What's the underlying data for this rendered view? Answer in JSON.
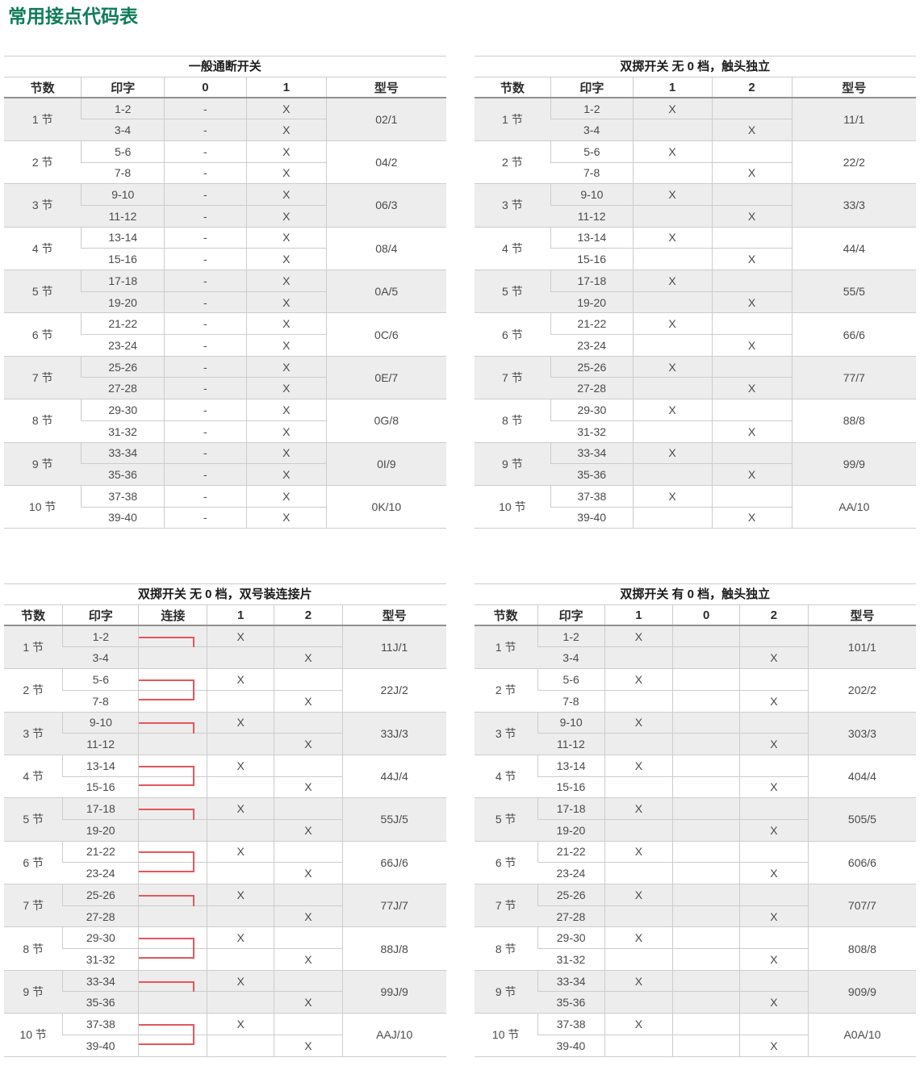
{
  "page_title": "常用接点代码表",
  "colors": {
    "title_green": "#0e7c55",
    "connector_red": "#e4565c",
    "row_shade": "#ededed",
    "grid_line": "#cccccc",
    "header_line": "#919191",
    "text": "#4a4a4a"
  },
  "tables": [
    {
      "name": "general-on-off-switch",
      "title": "一般通断开关",
      "columns": [
        "节数",
        "印字",
        "0",
        "1",
        "型号"
      ],
      "col_widths": [
        "17.5%",
        "18.8%",
        "18.5%",
        "18.2%",
        "27%"
      ],
      "connector": false,
      "groups": [
        {
          "sections": "1 节",
          "model": "02/1",
          "rows": [
            {
              "pin": "1-2",
              "marks": [
                "-",
                "X"
              ]
            },
            {
              "pin": "3-4",
              "marks": [
                "-",
                "X"
              ]
            }
          ]
        },
        {
          "sections": "2 节",
          "model": "04/2",
          "rows": [
            {
              "pin": "5-6",
              "marks": [
                "-",
                "X"
              ]
            },
            {
              "pin": "7-8",
              "marks": [
                "-",
                "X"
              ]
            }
          ]
        },
        {
          "sections": "3 节",
          "model": "06/3",
          "rows": [
            {
              "pin": "9-10",
              "marks": [
                "-",
                "X"
              ]
            },
            {
              "pin": "11-12",
              "marks": [
                "-",
                "X"
              ]
            }
          ]
        },
        {
          "sections": "4 节",
          "model": "08/4",
          "rows": [
            {
              "pin": "13-14",
              "marks": [
                "-",
                "X"
              ]
            },
            {
              "pin": "15-16",
              "marks": [
                "-",
                "X"
              ]
            }
          ]
        },
        {
          "sections": "5 节",
          "model": "0A/5",
          "rows": [
            {
              "pin": "17-18",
              "marks": [
                "-",
                "X"
              ]
            },
            {
              "pin": "19-20",
              "marks": [
                "-",
                "X"
              ]
            }
          ]
        },
        {
          "sections": "6 节",
          "model": "0C/6",
          "rows": [
            {
              "pin": "21-22",
              "marks": [
                "-",
                "X"
              ]
            },
            {
              "pin": "23-24",
              "marks": [
                "-",
                "X"
              ]
            }
          ]
        },
        {
          "sections": "7 节",
          "model": "0E/7",
          "rows": [
            {
              "pin": "25-26",
              "marks": [
                "-",
                "X"
              ]
            },
            {
              "pin": "27-28",
              "marks": [
                "-",
                "X"
              ]
            }
          ]
        },
        {
          "sections": "8 节",
          "model": "0G/8",
          "rows": [
            {
              "pin": "29-30",
              "marks": [
                "-",
                "X"
              ]
            },
            {
              "pin": "31-32",
              "marks": [
                "-",
                "X"
              ]
            }
          ]
        },
        {
          "sections": "9 节",
          "model": "0I/9",
          "rows": [
            {
              "pin": "33-34",
              "marks": [
                "-",
                "X"
              ]
            },
            {
              "pin": "35-36",
              "marks": [
                "-",
                "X"
              ]
            }
          ]
        },
        {
          "sections": "10 节",
          "model": "0K/10",
          "rows": [
            {
              "pin": "37-38",
              "marks": [
                "-",
                "X"
              ]
            },
            {
              "pin": "39-40",
              "marks": [
                "-",
                "X"
              ]
            }
          ]
        }
      ]
    },
    {
      "name": "double-throw-no-zero-independent",
      "title": "双掷开关 无 0 档，触头独立",
      "columns": [
        "节数",
        "印字",
        "1",
        "2",
        "型号"
      ],
      "col_widths": [
        "17.4%",
        "18.5%",
        "17.9%",
        "18.1%",
        "28.1%"
      ],
      "connector": false,
      "groups": [
        {
          "sections": "1 节",
          "model": "11/1",
          "rows": [
            {
              "pin": "1-2",
              "marks": [
                "X",
                ""
              ]
            },
            {
              "pin": "3-4",
              "marks": [
                "",
                "X"
              ]
            }
          ]
        },
        {
          "sections": "2 节",
          "model": "22/2",
          "rows": [
            {
              "pin": "5-6",
              "marks": [
                "X",
                ""
              ]
            },
            {
              "pin": "7-8",
              "marks": [
                "",
                "X"
              ]
            }
          ]
        },
        {
          "sections": "3 节",
          "model": "33/3",
          "rows": [
            {
              "pin": "9-10",
              "marks": [
                "X",
                ""
              ]
            },
            {
              "pin": "11-12",
              "marks": [
                "",
                "X"
              ]
            }
          ]
        },
        {
          "sections": "4 节",
          "model": "44/4",
          "rows": [
            {
              "pin": "13-14",
              "marks": [
                "X",
                ""
              ]
            },
            {
              "pin": "15-16",
              "marks": [
                "",
                "X"
              ]
            }
          ]
        },
        {
          "sections": "5 节",
          "model": "55/5",
          "rows": [
            {
              "pin": "17-18",
              "marks": [
                "X",
                ""
              ]
            },
            {
              "pin": "19-20",
              "marks": [
                "",
                "X"
              ]
            }
          ]
        },
        {
          "sections": "6 节",
          "model": "66/6",
          "rows": [
            {
              "pin": "21-22",
              "marks": [
                "X",
                ""
              ]
            },
            {
              "pin": "23-24",
              "marks": [
                "",
                "X"
              ]
            }
          ]
        },
        {
          "sections": "7 节",
          "model": "77/7",
          "rows": [
            {
              "pin": "25-26",
              "marks": [
                "X",
                ""
              ]
            },
            {
              "pin": "27-28",
              "marks": [
                "",
                "X"
              ]
            }
          ]
        },
        {
          "sections": "8 节",
          "model": "88/8",
          "rows": [
            {
              "pin": "29-30",
              "marks": [
                "X",
                ""
              ]
            },
            {
              "pin": "31-32",
              "marks": [
                "",
                "X"
              ]
            }
          ]
        },
        {
          "sections": "9 节",
          "model": "99/9",
          "rows": [
            {
              "pin": "33-34",
              "marks": [
                "X",
                ""
              ]
            },
            {
              "pin": "35-36",
              "marks": [
                "",
                "X"
              ]
            }
          ]
        },
        {
          "sections": "10 节",
          "model": "AA/10",
          "rows": [
            {
              "pin": "37-38",
              "marks": [
                "X",
                ""
              ]
            },
            {
              "pin": "39-40",
              "marks": [
                "",
                "X"
              ]
            }
          ]
        }
      ]
    },
    {
      "name": "double-throw-no-zero-linked",
      "title": "双掷开关 无 0 档，双号装连接片",
      "columns": [
        "节数",
        "印字",
        "连接",
        "1",
        "2",
        "型号"
      ],
      "col_widths": [
        "13.3%",
        "17.2%",
        "15.5%",
        "15.1%",
        "15.5%",
        "23.4%"
      ],
      "connector": true,
      "groups": [
        {
          "sections": "1 节",
          "model": "11J/1",
          "rows": [
            {
              "pin": "1-2",
              "marks": [
                "X",
                ""
              ]
            },
            {
              "pin": "3-4",
              "marks": [
                "",
                "X"
              ]
            }
          ]
        },
        {
          "sections": "2 节",
          "model": "22J/2",
          "rows": [
            {
              "pin": "5-6",
              "marks": [
                "X",
                ""
              ]
            },
            {
              "pin": "7-8",
              "marks": [
                "",
                "X"
              ]
            }
          ]
        },
        {
          "sections": "3 节",
          "model": "33J/3",
          "rows": [
            {
              "pin": "9-10",
              "marks": [
                "X",
                ""
              ]
            },
            {
              "pin": "11-12",
              "marks": [
                "",
                "X"
              ]
            }
          ]
        },
        {
          "sections": "4 节",
          "model": "44J/4",
          "rows": [
            {
              "pin": "13-14",
              "marks": [
                "X",
                ""
              ]
            },
            {
              "pin": "15-16",
              "marks": [
                "",
                "X"
              ]
            }
          ]
        },
        {
          "sections": "5 节",
          "model": "55J/5",
          "rows": [
            {
              "pin": "17-18",
              "marks": [
                "X",
                ""
              ]
            },
            {
              "pin": "19-20",
              "marks": [
                "",
                "X"
              ]
            }
          ]
        },
        {
          "sections": "6 节",
          "model": "66J/6",
          "rows": [
            {
              "pin": "21-22",
              "marks": [
                "X",
                ""
              ]
            },
            {
              "pin": "23-24",
              "marks": [
                "",
                "X"
              ]
            }
          ]
        },
        {
          "sections": "7 节",
          "model": "77J/7",
          "rows": [
            {
              "pin": "25-26",
              "marks": [
                "X",
                ""
              ]
            },
            {
              "pin": "27-28",
              "marks": [
                "",
                "X"
              ]
            }
          ]
        },
        {
          "sections": "8 节",
          "model": "88J/8",
          "rows": [
            {
              "pin": "29-30",
              "marks": [
                "X",
                ""
              ]
            },
            {
              "pin": "31-32",
              "marks": [
                "",
                "X"
              ]
            }
          ]
        },
        {
          "sections": "9 节",
          "model": "99J/9",
          "rows": [
            {
              "pin": "33-34",
              "marks": [
                "X",
                ""
              ]
            },
            {
              "pin": "35-36",
              "marks": [
                "",
                "X"
              ]
            }
          ]
        },
        {
          "sections": "10 节",
          "model": "AAJ/10",
          "rows": [
            {
              "pin": "37-38",
              "marks": [
                "X",
                ""
              ]
            },
            {
              "pin": "39-40",
              "marks": [
                "",
                "X"
              ]
            }
          ]
        }
      ]
    },
    {
      "name": "double-throw-with-zero-independent",
      "title": "双掷开关 有 0 档，触头独立",
      "columns": [
        "节数",
        "印字",
        "1",
        "0",
        "2",
        "型号"
      ],
      "col_widths": [
        "14.4%",
        "15.1%",
        "15.5%",
        "15.1%",
        "15.5%",
        "24.4%"
      ],
      "connector": false,
      "groups": [
        {
          "sections": "1 节",
          "model": "101/1",
          "rows": [
            {
              "pin": "1-2",
              "marks": [
                "X",
                "",
                ""
              ]
            },
            {
              "pin": "3-4",
              "marks": [
                "",
                "",
                "X"
              ]
            }
          ]
        },
        {
          "sections": "2 节",
          "model": "202/2",
          "rows": [
            {
              "pin": "5-6",
              "marks": [
                "X",
                "",
                ""
              ]
            },
            {
              "pin": "7-8",
              "marks": [
                "",
                "",
                "X"
              ]
            }
          ]
        },
        {
          "sections": "3 节",
          "model": "303/3",
          "rows": [
            {
              "pin": "9-10",
              "marks": [
                "X",
                "",
                ""
              ]
            },
            {
              "pin": "11-12",
              "marks": [
                "",
                "",
                "X"
              ]
            }
          ]
        },
        {
          "sections": "4 节",
          "model": "404/4",
          "rows": [
            {
              "pin": "13-14",
              "marks": [
                "X",
                "",
                ""
              ]
            },
            {
              "pin": "15-16",
              "marks": [
                "",
                "",
                "X"
              ]
            }
          ]
        },
        {
          "sections": "5 节",
          "model": "505/5",
          "rows": [
            {
              "pin": "17-18",
              "marks": [
                "X",
                "",
                ""
              ]
            },
            {
              "pin": "19-20",
              "marks": [
                "",
                "",
                "X"
              ]
            }
          ]
        },
        {
          "sections": "6 节",
          "model": "606/6",
          "rows": [
            {
              "pin": "21-22",
              "marks": [
                "X",
                "",
                ""
              ]
            },
            {
              "pin": "23-24",
              "marks": [
                "",
                "",
                "X"
              ]
            }
          ]
        },
        {
          "sections": "7 节",
          "model": "707/7",
          "rows": [
            {
              "pin": "25-26",
              "marks": [
                "X",
                "",
                ""
              ]
            },
            {
              "pin": "27-28",
              "marks": [
                "",
                "",
                "X"
              ]
            }
          ]
        },
        {
          "sections": "8 节",
          "model": "808/8",
          "rows": [
            {
              "pin": "29-30",
              "marks": [
                "X",
                "",
                ""
              ]
            },
            {
              "pin": "31-32",
              "marks": [
                "",
                "",
                "X"
              ]
            }
          ]
        },
        {
          "sections": "9 节",
          "model": "909/9",
          "rows": [
            {
              "pin": "33-34",
              "marks": [
                "X",
                "",
                ""
              ]
            },
            {
              "pin": "35-36",
              "marks": [
                "",
                "",
                "X"
              ]
            }
          ]
        },
        {
          "sections": "10 节",
          "model": "A0A/10",
          "rows": [
            {
              "pin": "37-38",
              "marks": [
                "X",
                "",
                ""
              ]
            },
            {
              "pin": "39-40",
              "marks": [
                "",
                "",
                "X"
              ]
            }
          ]
        }
      ]
    }
  ]
}
